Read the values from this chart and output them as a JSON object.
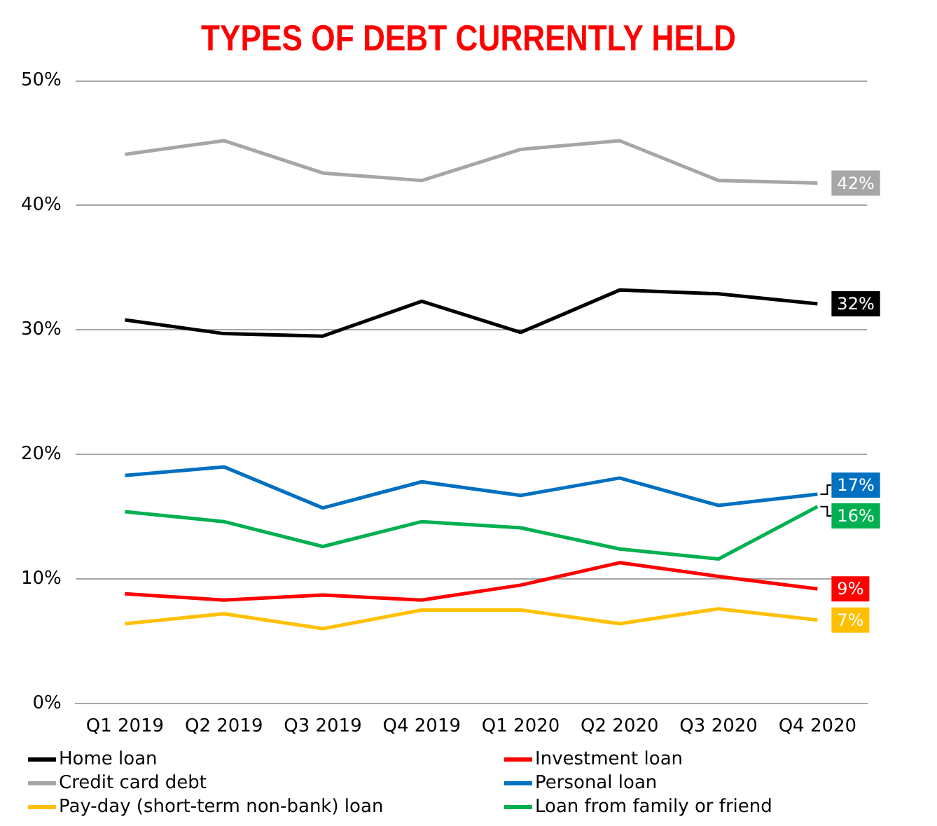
{
  "chart_data": {
    "type": "line",
    "title": "TYPES OF DEBT CURRENTLY HELD",
    "categories": [
      "Q1 2019",
      "Q2 2019",
      "Q3 2019",
      "Q4 2019",
      "Q1 2020",
      "Q2 2020",
      "Q3 2020",
      "Q4 2020"
    ],
    "series": [
      {
        "name": "Home loan",
        "color": "#000000",
        "values": [
          30.8,
          29.7,
          29.5,
          32.3,
          29.8,
          33.2,
          32.9,
          32.1
        ],
        "value_labels": [
          null,
          null,
          null,
          null,
          null,
          null,
          null,
          "32%"
        ]
      },
      {
        "name": "Investment loan",
        "color": "#ff0000",
        "values": [
          8.8,
          8.3,
          8.7,
          8.3,
          9.5,
          11.3,
          10.2,
          9.2
        ],
        "value_labels": [
          null,
          null,
          null,
          null,
          null,
          null,
          null,
          "9%"
        ]
      },
      {
        "name": "Credit card debt",
        "color": "#a6a6a6",
        "values": [
          44.1,
          45.2,
          42.6,
          42.0,
          44.5,
          45.2,
          42.0,
          41.8
        ],
        "value_labels": [
          null,
          null,
          null,
          null,
          null,
          null,
          null,
          "42%"
        ]
      },
      {
        "name": "Personal loan",
        "color": "#0070c0",
        "values": [
          18.3,
          19.0,
          15.7,
          17.8,
          16.7,
          18.1,
          15.9,
          16.8
        ],
        "value_labels": [
          null,
          null,
          null,
          null,
          null,
          null,
          null,
          "17%"
        ]
      },
      {
        "name": "Pay-day (short-term non-bank) loan",
        "color": "#ffc000",
        "values": [
          6.4,
          7.2,
          6.0,
          7.5,
          7.5,
          6.4,
          7.6,
          6.7
        ],
        "value_labels": [
          null,
          null,
          null,
          null,
          null,
          null,
          null,
          "7%"
        ]
      },
      {
        "name": "Loan from family or friend",
        "color": "#00b050",
        "values": [
          15.4,
          14.6,
          12.6,
          14.6,
          14.1,
          12.4,
          11.6,
          15.8
        ],
        "value_labels": [
          null,
          null,
          null,
          null,
          null,
          null,
          null,
          "16%"
        ]
      }
    ],
    "ylim": [
      0,
      50
    ],
    "yticks": [
      {
        "value": 0,
        "label": "0%"
      },
      {
        "value": 10,
        "label": "10%"
      },
      {
        "value": 20,
        "label": "20%"
      },
      {
        "value": 30,
        "label": "30%"
      },
      {
        "value": 40,
        "label": "40%"
      },
      {
        "value": 50,
        "label": "50%"
      }
    ],
    "grid": "y",
    "legend": "bottom",
    "marker": "none",
    "line_style": "solid"
  }
}
